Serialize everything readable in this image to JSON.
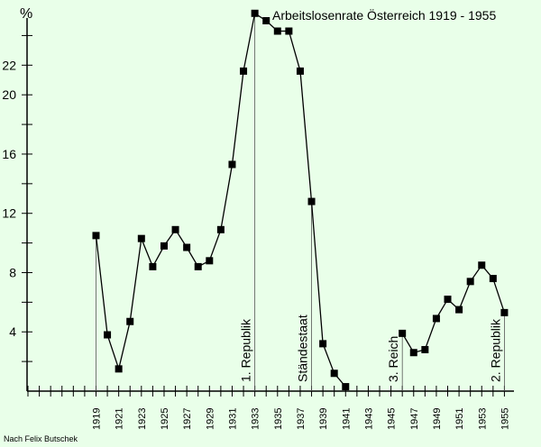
{
  "chart_data": {
    "type": "line",
    "title": "Arbeitslosenrate Österreich 1919 - 1955",
    "ylabel": "%",
    "xlabel": "",
    "credit": "Nach Felix Butschek",
    "xlim": [
      1913,
      1956
    ],
    "ylim": [
      0,
      25
    ],
    "y_ticks": [
      4,
      8,
      12,
      16,
      20,
      22
    ],
    "x_tick_labels": [
      1919,
      1921,
      1923,
      1925,
      1927,
      1929,
      1931,
      1933,
      1935,
      1937,
      1939,
      1941,
      1943,
      1945,
      1947,
      1949,
      1951,
      1953,
      1955
    ],
    "grid": false,
    "segments": [
      {
        "x": [
          1919,
          1920,
          1921,
          1922,
          1923,
          1924,
          1925,
          1926,
          1927,
          1928,
          1929,
          1930,
          1931,
          1932,
          1933,
          1934,
          1935,
          1936,
          1937,
          1938,
          1939,
          1940,
          1941
        ],
        "y": [
          10.5,
          3.8,
          1.5,
          4.7,
          10.3,
          8.4,
          9.8,
          10.9,
          9.7,
          8.4,
          8.8,
          10.9,
          15.3,
          21.6,
          25.5,
          25.0,
          24.3,
          24.3,
          21.6,
          12.8,
          3.2,
          1.2,
          0.3
        ]
      },
      {
        "x": [
          1946,
          1947,
          1948,
          1949,
          1950,
          1951,
          1952,
          1953,
          1954,
          1955
        ],
        "y": [
          3.9,
          2.6,
          2.8,
          4.9,
          6.2,
          5.5,
          7.4,
          8.5,
          7.6,
          5.3
        ]
      }
    ],
    "drop_lines": [
      1919,
      1933,
      1938,
      1946,
      1955
    ],
    "annotations": [
      {
        "text": "1. Republik",
        "x": 1933
      },
      {
        "text": "Ständestaat",
        "x": 1938
      },
      {
        "text": "3. Reich",
        "x": 1946
      },
      {
        "text": "2. Republik",
        "x": 1955
      }
    ]
  }
}
